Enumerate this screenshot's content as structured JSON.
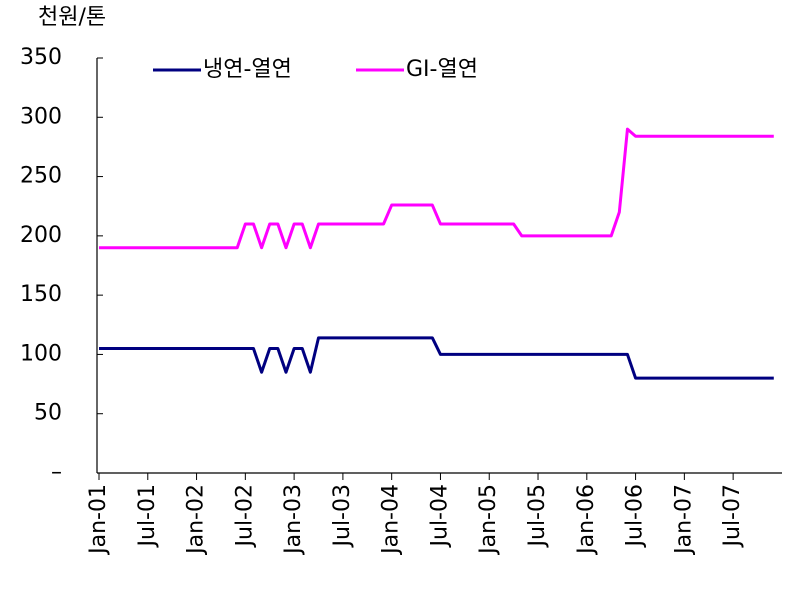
{
  "chart_data": {
    "type": "line",
    "y_axis_label": "천원/톤",
    "categories": [
      "Jan-01",
      null,
      null,
      null,
      null,
      null,
      "Jul-01",
      null,
      null,
      null,
      null,
      null,
      "Jan-02",
      null,
      null,
      null,
      null,
      null,
      "Jul-02",
      null,
      null,
      null,
      null,
      null,
      "Jan-03",
      null,
      null,
      null,
      null,
      null,
      "Jul-03",
      null,
      null,
      null,
      null,
      null,
      "Jan-04",
      null,
      null,
      null,
      null,
      null,
      "Jul-04",
      null,
      null,
      null,
      null,
      null,
      "Jan-05",
      null,
      null,
      null,
      null,
      null,
      "Jul-05",
      null,
      null,
      null,
      null,
      null,
      "Jan-06",
      null,
      null,
      null,
      null,
      null,
      "Jul-06",
      null,
      null,
      null,
      null,
      null,
      "Jan-07",
      null,
      null,
      null,
      null,
      null,
      "Jul-07",
      null,
      null,
      null,
      null,
      null
    ],
    "series": [
      {
        "name": "냉연-열연",
        "color": "#000080",
        "values": [
          105,
          105,
          105,
          105,
          105,
          105,
          105,
          105,
          105,
          105,
          105,
          105,
          105,
          105,
          105,
          105,
          105,
          105,
          105,
          105,
          85,
          105,
          105,
          85,
          105,
          105,
          85,
          114,
          114,
          114,
          114,
          114,
          114,
          114,
          114,
          114,
          114,
          114,
          114,
          114,
          114,
          114,
          100,
          100,
          100,
          100,
          100,
          100,
          100,
          100,
          100,
          100,
          100,
          100,
          100,
          100,
          100,
          100,
          100,
          100,
          100,
          100,
          100,
          100,
          100,
          100,
          80,
          80,
          80,
          80,
          80,
          80,
          80,
          80,
          80,
          80,
          80,
          80,
          80,
          80,
          80,
          80,
          80,
          80
        ]
      },
      {
        "name": "GI-열연",
        "color": "#ff00ff",
        "values": [
          190,
          190,
          190,
          190,
          190,
          190,
          190,
          190,
          190,
          190,
          190,
          190,
          190,
          190,
          190,
          190,
          190,
          190,
          210,
          210,
          190,
          210,
          210,
          190,
          210,
          210,
          190,
          210,
          210,
          210,
          210,
          210,
          210,
          210,
          210,
          210,
          226,
          226,
          226,
          226,
          226,
          226,
          210,
          210,
          210,
          210,
          210,
          210,
          210,
          210,
          210,
          210,
          200,
          200,
          200,
          200,
          200,
          200,
          200,
          200,
          200,
          200,
          200,
          200,
          220,
          290,
          284,
          284,
          284,
          284,
          284,
          284,
          284,
          284,
          284,
          284,
          284,
          284,
          284,
          284,
          284,
          284,
          284,
          284
        ]
      }
    ],
    "ylim": [
      0,
      350
    ],
    "yticks": [
      {
        "value": 0,
        "label": "–"
      },
      50,
      100,
      150,
      200,
      250,
      300,
      350
    ]
  }
}
